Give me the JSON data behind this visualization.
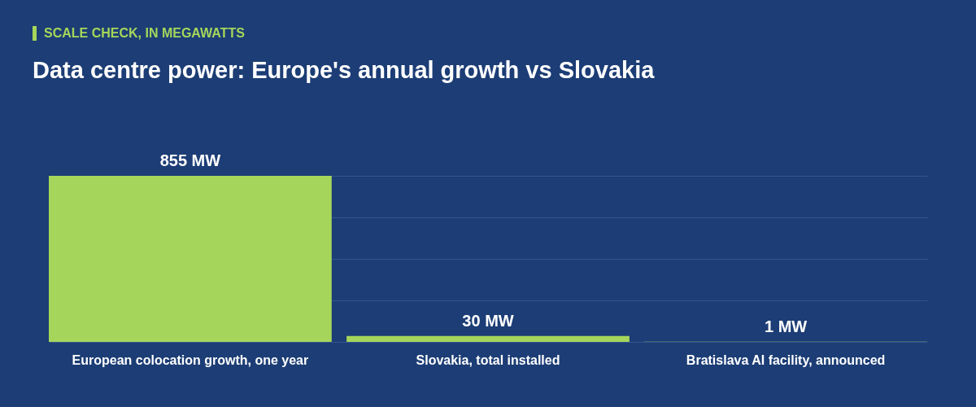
{
  "chart_data": {
    "type": "bar",
    "subtitle": "SCALE CHECK, IN MEGAWATTS",
    "title": "Data centre power: Europe's annual growth vs Slovakia",
    "categories": [
      "European colocation growth, one year",
      "Slovakia, total installed",
      "Bratislava AI facility, announced"
    ],
    "values": [
      855,
      30,
      1
    ],
    "color": "#a5d65b",
    "value_labels": [
      "855 MW",
      "30 MW",
      "1 MW"
    ],
    "ylim": [
      0,
      855
    ],
    "yticks": [
      {
        "value": 0,
        "label": null
      },
      {
        "value": 213.75,
        "label": null
      },
      {
        "value": 427.5,
        "label": null
      },
      {
        "value": 641.25,
        "label": null
      },
      {
        "value": 855,
        "label": null
      }
    ],
    "grid": "y",
    "tick_labels": "x"
  }
}
